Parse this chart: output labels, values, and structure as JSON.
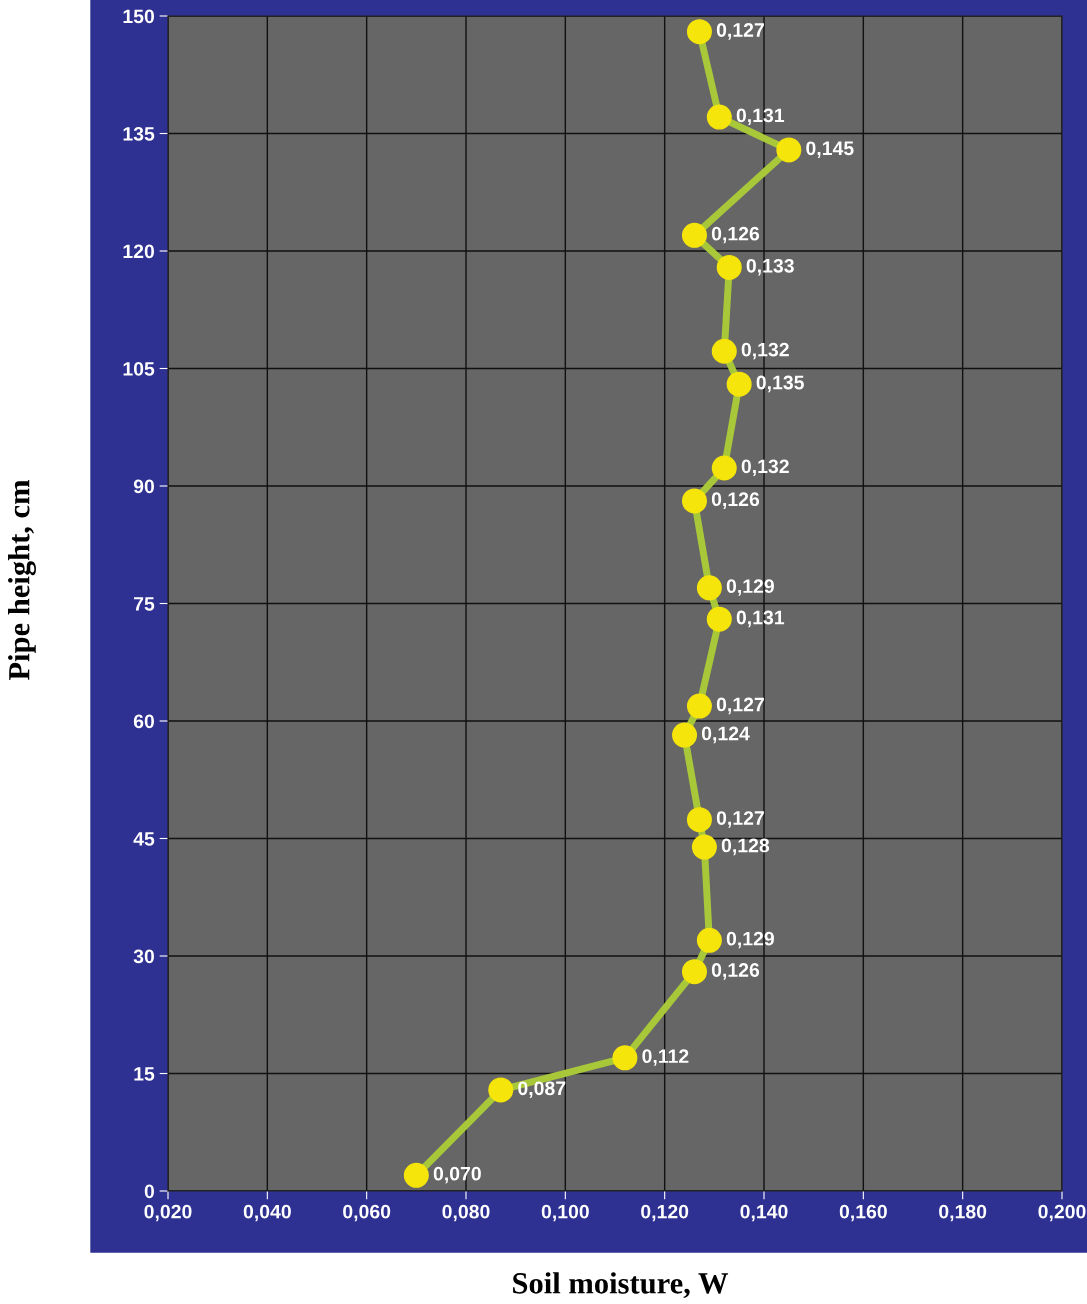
{
  "chart_data": {
    "type": "line",
    "xlabel": "Soil moisture, W",
    "ylabel": "Pipe height, cm",
    "series": [
      {
        "color": "#a8c83a",
        "x": [
          0.127,
          0.131,
          0.145,
          0.126,
          0.133,
          0.132,
          0.135,
          0.132,
          0.126,
          0.129,
          0.131,
          0.127,
          0.124,
          0.127,
          0.128,
          0.129,
          0.126,
          0.112,
          0.087,
          0.07
        ],
        "values": [
          148.0,
          137.1,
          132.9,
          122.0,
          117.9,
          107.2,
          103.0,
          92.3,
          88.1,
          77.0,
          73.0,
          61.9,
          58.2,
          47.4,
          43.9,
          32.0,
          28.0,
          17.0,
          12.9,
          2.0
        ]
      }
    ],
    "value_labels": [
      "0,127",
      "0,131",
      "0,145",
      "0,126",
      "0,133",
      "0,132",
      "0,135",
      "0,132",
      "0,126",
      "0,129",
      "0,131",
      "0,127",
      "0,124",
      "0,127",
      "0,128",
      "0,129",
      "0,126",
      "0,112",
      "0,087",
      "0,070"
    ],
    "marker": "circle",
    "line_style": "solid",
    "grid": true,
    "xlim": [
      0.02,
      0.2
    ],
    "xticks": [
      {
        "value": 0.02,
        "label": "0,020"
      },
      {
        "value": 0.04,
        "label": "0,040"
      },
      {
        "value": 0.06,
        "label": "0,060"
      },
      {
        "value": 0.08,
        "label": "0,080"
      },
      {
        "value": 0.1,
        "label": "0,100"
      },
      {
        "value": 0.12,
        "label": "0,120"
      },
      {
        "value": 0.14,
        "label": "0,140"
      },
      {
        "value": 0.16,
        "label": "0,160"
      },
      {
        "value": 0.18,
        "label": "0,180"
      },
      {
        "value": 0.2,
        "label": "0,200"
      }
    ],
    "ylim": [
      0,
      150
    ],
    "yticks": [
      0,
      15,
      30,
      45,
      60,
      75,
      90,
      105,
      120,
      135,
      150
    ]
  }
}
